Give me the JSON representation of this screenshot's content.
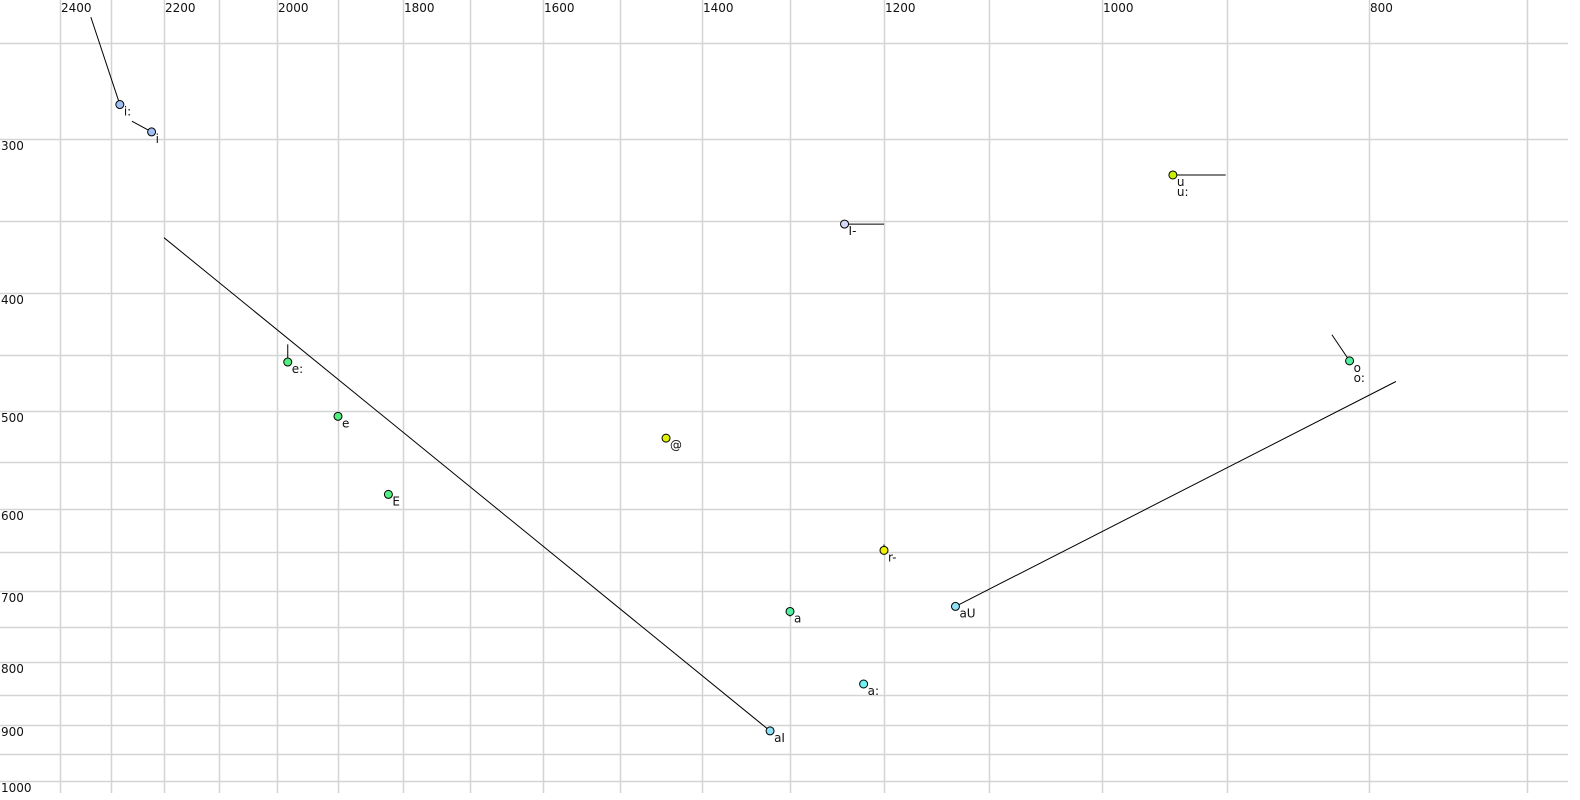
{
  "chart_data": {
    "type": "scatter",
    "title": "",
    "xlabel": "",
    "ylabel": "",
    "x_axis": {
      "reversed": true,
      "scale": "log",
      "range": [
        2400,
        700
      ],
      "tick_labels": [
        2400,
        2200,
        2000,
        1800,
        1600,
        1400,
        1200,
        1000,
        800
      ],
      "grid_step": 100
    },
    "y_axis": {
      "reversed": false,
      "scale": "log",
      "range": [
        250,
        1000
      ],
      "tick_labels": [
        300,
        400,
        500,
        600,
        700,
        800,
        900,
        1000
      ],
      "grid_step": 50
    },
    "grid": true,
    "points": [
      {
        "label": "i:",
        "f2": 2283,
        "f1": 281,
        "color": "#9ec0f2",
        "from": [
          2339,
          238
        ]
      },
      {
        "label": "i",
        "f2": 2223,
        "f1": 296,
        "color": "#9ec0f2",
        "from": [
          2260,
          290
        ]
      },
      {
        "label": "u",
        "f2": 942,
        "f1": 321,
        "color": "#c8f000",
        "from": [
          901,
          321
        ]
      },
      {
        "label": "u:",
        "f2": 942,
        "f1": 321,
        "color": "#c8f000"
      },
      {
        "label": "I-",
        "f2": 1241,
        "f1": 352,
        "color": "#d8d8f8",
        "from": [
          1200,
          352
        ]
      },
      {
        "label": "e:",
        "f2": 1982,
        "f1": 456,
        "color": "#50f080",
        "from": [
          1982,
          441
        ]
      },
      {
        "label": "e",
        "f2": 1900,
        "f1": 505,
        "color": "#50f080"
      },
      {
        "label": "E",
        "f2": 1822,
        "f1": 584,
        "color": "#50f080"
      },
      {
        "label": "@",
        "f2": 1443,
        "f1": 526,
        "color": "#e0f000"
      },
      {
        "label": "r-",
        "f2": 1200,
        "f1": 648,
        "color": "#f0f000",
        "from": [
          1200,
          641
        ]
      },
      {
        "label": "a",
        "f2": 1300,
        "f1": 728,
        "color": "#50f0a0",
        "from": [
          1300,
          735
        ]
      },
      {
        "label": "a:",
        "f2": 1221,
        "f1": 833,
        "color": "#70f0f0"
      },
      {
        "label": "aI",
        "f2": 1322,
        "f1": 910,
        "color": "#90e0f8",
        "from": [
          2200,
          361
        ]
      },
      {
        "label": "aU",
        "f2": 1131,
        "f1": 721,
        "color": "#90e0f8",
        "from": [
          782,
          473
        ]
      },
      {
        "label": "o",
        "f2": 813,
        "f1": 455,
        "color": "#50f0a0",
        "from": [
          825,
          433
        ]
      },
      {
        "label": "o:",
        "f2": 813,
        "f1": 455,
        "color": "#50f0a0"
      }
    ]
  }
}
